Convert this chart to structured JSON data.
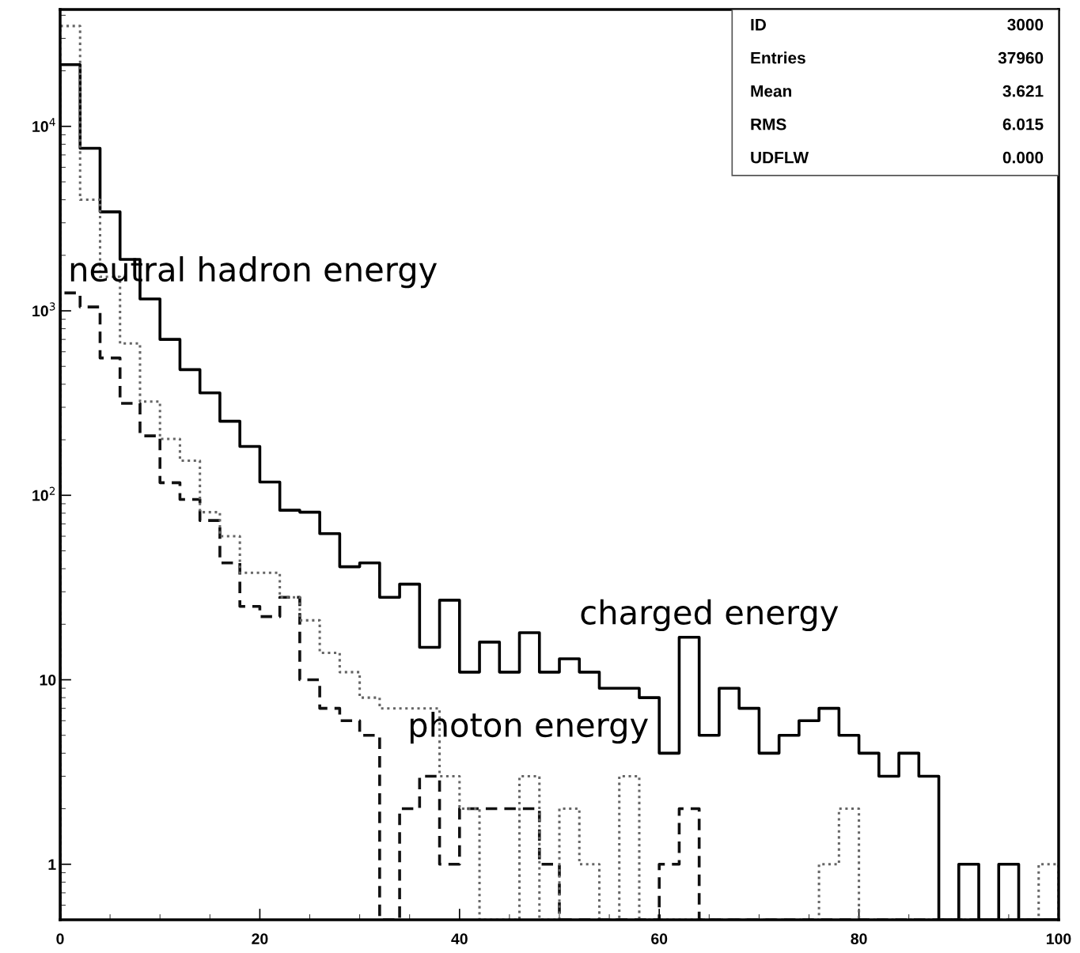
{
  "chart_data": {
    "type": "histogram",
    "log": true,
    "bins": [
      0,
      2,
      4,
      6,
      8,
      10,
      12,
      14,
      16,
      18,
      20,
      22,
      24,
      26,
      28,
      30,
      32,
      34,
      36,
      38,
      40,
      42,
      44,
      46,
      48,
      50,
      52,
      54,
      56,
      58,
      60,
      62,
      64,
      66,
      68,
      70,
      72,
      74,
      76,
      78,
      80,
      82,
      84,
      86,
      88,
      90,
      92,
      94,
      96,
      98,
      100
    ],
    "series": [
      {
        "name": "charged energy",
        "color": "#000000",
        "line_style": "solid",
        "values": [
          21600,
          7600,
          3440,
          1900,
          1160,
          700,
          480,
          359,
          252,
          184,
          118,
          83,
          81,
          62,
          41,
          43,
          28,
          33,
          15,
          27,
          11,
          16,
          11,
          18,
          11,
          13,
          11,
          9,
          9,
          8,
          4,
          17,
          5,
          9,
          7,
          4,
          5,
          6,
          7,
          5,
          4,
          3,
          4,
          3,
          null,
          1,
          null,
          1,
          null,
          null
        ]
      },
      {
        "name": "neutral hadron energy",
        "color": "#111111",
        "line_style": "dashed",
        "values": [
          1250,
          1050,
          555,
          315,
          210,
          117,
          95,
          73,
          43,
          25,
          22,
          28,
          10,
          7,
          6,
          5,
          null,
          2,
          3,
          1,
          2,
          2,
          2,
          2,
          1,
          null,
          null,
          null,
          null,
          null,
          1,
          2,
          null,
          null,
          null,
          null,
          null,
          null,
          null,
          null,
          null,
          null,
          null,
          null,
          null,
          null,
          null,
          null,
          null,
          null
        ]
      },
      {
        "name": "photon energy",
        "color": "#666666",
        "line_style": "dotted",
        "values": [
          35000,
          4000,
          1530,
          665,
          322,
          202,
          154,
          81,
          60,
          38,
          38,
          28,
          21,
          14,
          11,
          8,
          7,
          7,
          7,
          3,
          2,
          null,
          null,
          3,
          null,
          2,
          1,
          null,
          3,
          null,
          null,
          null,
          null,
          null,
          null,
          null,
          null,
          null,
          1,
          2,
          null,
          null,
          null,
          null,
          null,
          null,
          null,
          null,
          null,
          1
        ]
      }
    ],
    "xlim": [
      0,
      100
    ],
    "ylim": [
      0.5,
      43000
    ],
    "xticks": [
      0,
      20,
      40,
      60,
      80,
      100
    ],
    "yticks": [
      {
        "value": 1,
        "label": "1"
      },
      {
        "value": 10,
        "label": "10"
      },
      {
        "value": 100,
        "label": "10$^{2}$"
      },
      {
        "value": 1000,
        "label": "10$^{3}$"
      },
      {
        "value": 10000,
        "label": "10$^{4}$"
      }
    ],
    "annotations": [
      "ID",
      "3000",
      "Entries",
      "37960",
      "Mean",
      "3.621",
      "RMS",
      "6.015",
      "UDFLW",
      "0.000"
    ]
  }
}
